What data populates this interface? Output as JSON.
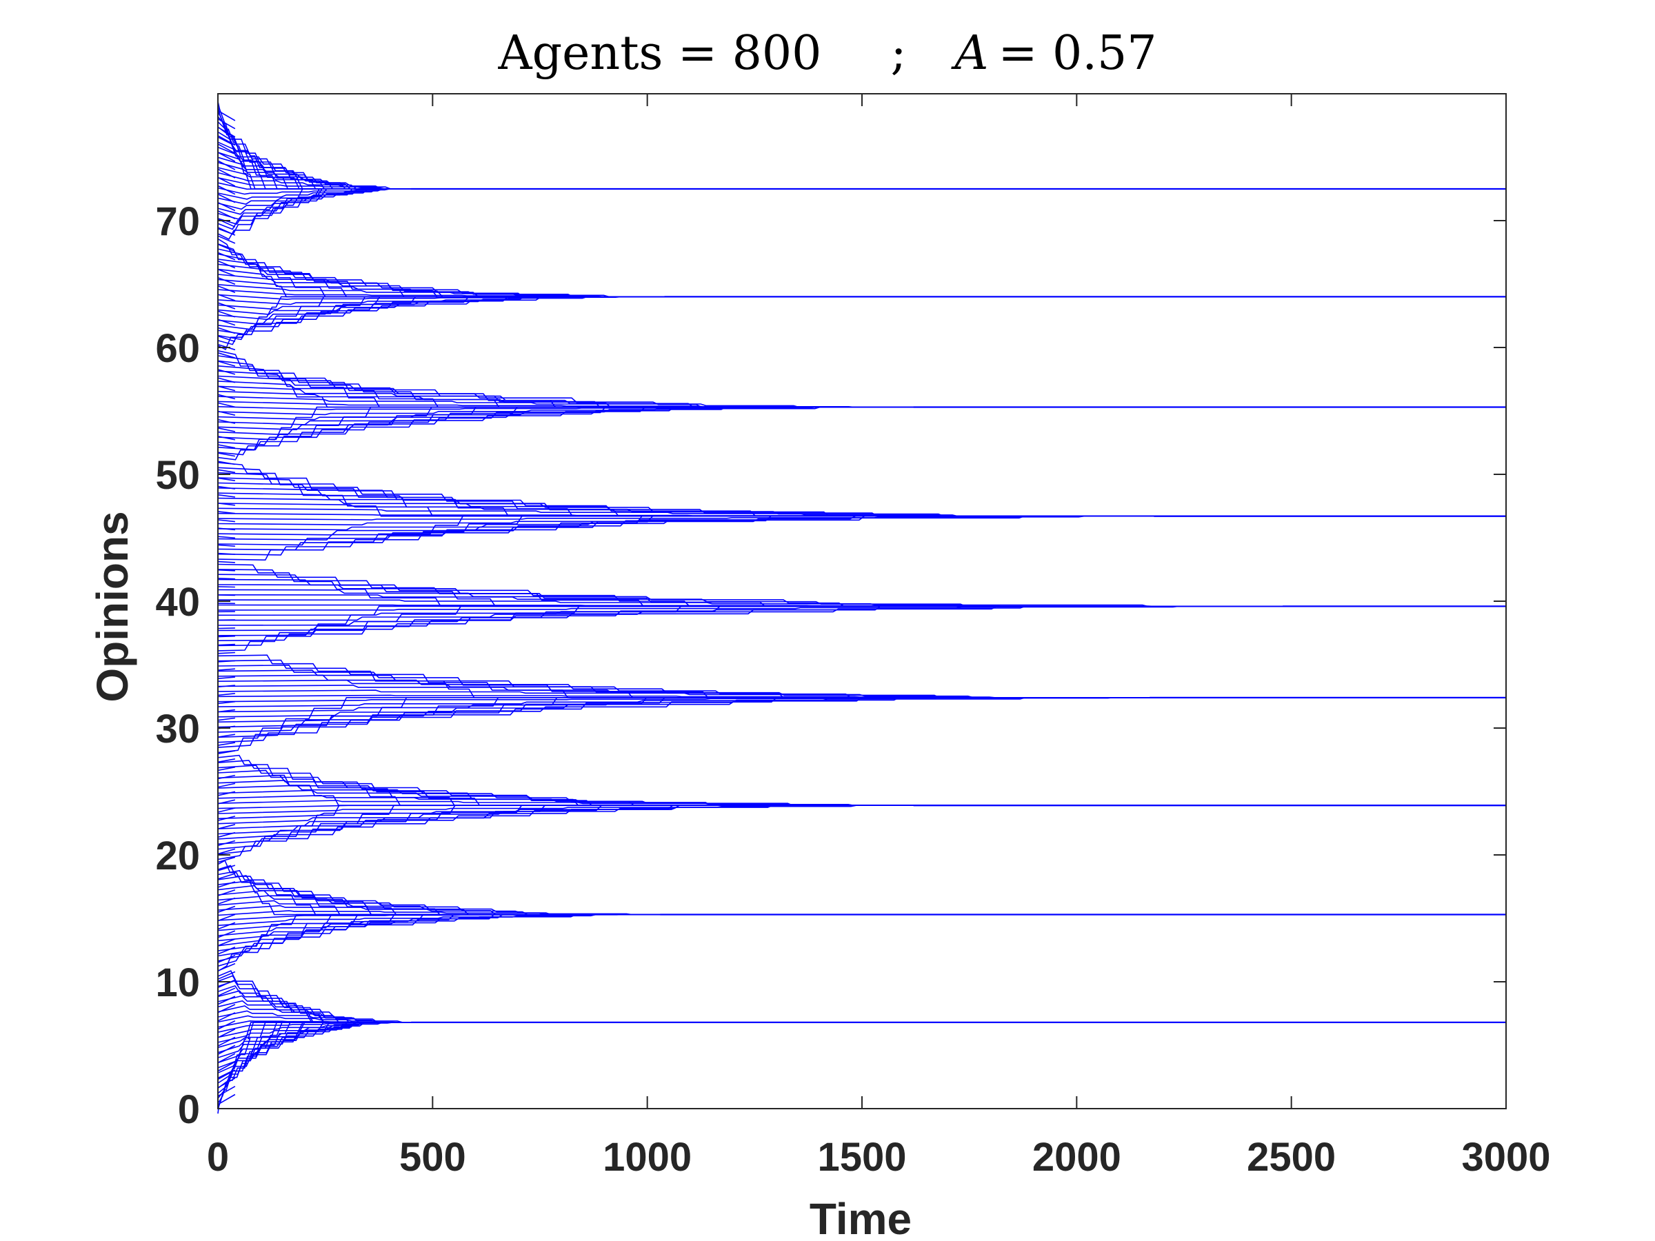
{
  "chart_data": {
    "type": "line",
    "title_left": "Agents = 800",
    "title_sep": ";",
    "title_var": "A",
    "title_right": "= 0.57",
    "xlabel": "Time",
    "ylabel": "Opinions",
    "xlim": [
      0,
      3000
    ],
    "ylim": [
      0,
      80
    ],
    "xticks": [
      "0",
      "500",
      "1000",
      "1500",
      "2000",
      "2500",
      "3000"
    ],
    "yticks": [
      "0",
      "10",
      "20",
      "30",
      "40",
      "50",
      "60",
      "70"
    ],
    "grid": false,
    "line_color": "#0000ff",
    "agents": 800,
    "A": 0.57,
    "initial_opinion_range": [
      0,
      79
    ],
    "clusters": [
      {
        "opinion": 6.8,
        "converge_time": 450
      },
      {
        "opinion": 15.3,
        "converge_time": 1030
      },
      {
        "opinion": 23.9,
        "converge_time": 1620
      },
      {
        "opinion": 32.4,
        "converge_time": 2170
      },
      {
        "opinion": 39.6,
        "converge_time": 2480
      },
      {
        "opinion": 46.7,
        "converge_time": 2180
      },
      {
        "opinion": 55.3,
        "converge_time": 1620
      },
      {
        "opinion": 64.0,
        "converge_time": 1040
      },
      {
        "opinion": 72.5,
        "converge_time": 450
      }
    ]
  }
}
